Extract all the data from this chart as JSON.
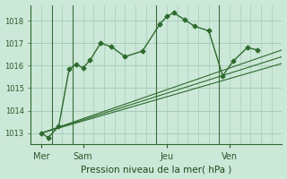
{
  "background_color": "#cce8d8",
  "grid_color": "#aaccbb",
  "line_color": "#2d6a2d",
  "title": "Pression niveau de la mer( hPa )",
  "ylim": [
    1012.5,
    1018.7
  ],
  "yticks": [
    1013,
    1014,
    1015,
    1016,
    1017,
    1018
  ],
  "xlim": [
    0,
    72
  ],
  "x_day_labels": [
    [
      "Mer",
      3
    ],
    [
      "Sam",
      15
    ],
    [
      "Jeu",
      39
    ],
    [
      "Ven",
      57
    ]
  ],
  "day_vlines": [
    6,
    12,
    36,
    54
  ],
  "main_series": {
    "x": [
      3,
      5,
      8,
      11,
      13,
      15,
      17,
      20,
      23,
      27,
      32,
      37,
      39,
      41,
      44,
      47,
      51,
      55,
      58,
      62,
      65
    ],
    "y": [
      1013.0,
      1012.8,
      1013.3,
      1015.85,
      1016.05,
      1015.9,
      1016.25,
      1017.0,
      1016.85,
      1016.4,
      1016.65,
      1017.85,
      1018.2,
      1018.35,
      1018.05,
      1017.75,
      1017.55,
      1015.55,
      1016.2,
      1016.8,
      1016.7
    ]
  },
  "fan_series": [
    {
      "x": [
        3,
        72
      ],
      "y": [
        1013.0,
        1016.1
      ]
    },
    {
      "x": [
        3,
        72
      ],
      "y": [
        1013.0,
        1016.4
      ]
    },
    {
      "x": [
        3,
        72
      ],
      "y": [
        1013.0,
        1016.7
      ]
    }
  ]
}
